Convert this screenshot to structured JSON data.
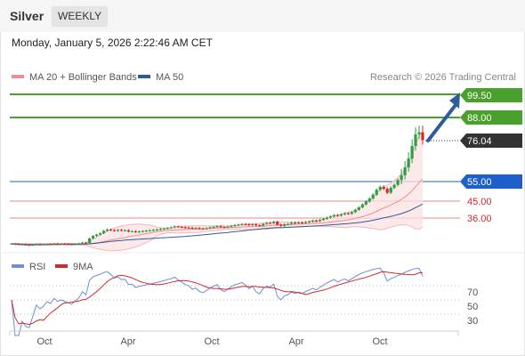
{
  "header": {
    "title": "Silver",
    "period": "WEEKLY"
  },
  "date": "Monday, January 5, 2026 2:22:46 AM CET",
  "legend": {
    "items": [
      {
        "label": "MA 20 + Bollinger Bands",
        "color": "#f28b8b"
      },
      {
        "label": "MA 50",
        "color": "#2e5a9c"
      }
    ],
    "credit": "Research © 2026 Trading Central"
  },
  "rsi_legend": [
    {
      "label": "RSI",
      "color": "#6b8fd8"
    },
    {
      "label": "9MA",
      "color": "#d62828"
    }
  ],
  "price_levels": [
    {
      "label": "99.50",
      "value": 99.5,
      "kind": "resistance",
      "color": "#4aa02c"
    },
    {
      "label": "88.00",
      "value": 88.0,
      "kind": "resistance",
      "color": "#4aa02c"
    },
    {
      "label": "76.04",
      "value": 76.04,
      "kind": "last",
      "color": "#333333"
    },
    {
      "label": "55.00",
      "value": 55.0,
      "kind": "pivot",
      "color": "#1f5fc9"
    },
    {
      "label": "45.00",
      "value": 45.0,
      "kind": "support",
      "color": "#d62828"
    },
    {
      "label": "36.00",
      "value": 36.0,
      "kind": "support",
      "color": "#d62828"
    }
  ],
  "rsi_axis": [
    "70",
    "50",
    "30"
  ],
  "x_axis": [
    "Oct",
    "Apr",
    "Oct",
    "Apr",
    "Oct"
  ],
  "chart_data": {
    "type": "candlestick",
    "timeframe": "weekly",
    "x_ticks": [
      "Oct",
      "Apr",
      "Oct",
      "Apr",
      "Oct"
    ],
    "weeks": 117,
    "close_approx": [
      22.8,
      22.6,
      22.4,
      22.5,
      22.2,
      22.1,
      22.3,
      22.6,
      22.4,
      22.5,
      22.7,
      22.6,
      22.9,
      22.7,
      22.8,
      22.7,
      22.6,
      22.5,
      22.7,
      22.9,
      23.4,
      23.2,
      25.5,
      26.8,
      27.5,
      28.2,
      29.4,
      30.1,
      29.8,
      29.4,
      29.9,
      29.6,
      29.7,
      29.1,
      29.2,
      28.8,
      29.1,
      29.3,
      29.5,
      29.7,
      29.9,
      30.1,
      30.4,
      30.6,
      30.9,
      31.2,
      31.7,
      31.5,
      31.3,
      31.1,
      31.0,
      30.7,
      30.9,
      30.6,
      30.5,
      30.8,
      31.2,
      31.5,
      31.8,
      31.4,
      31.2,
      31.6,
      32.0,
      32.4,
      32.6,
      32.9,
      32.7,
      32.4,
      32.8,
      32.3,
      32.1,
      33.0,
      33.5,
      33.4,
      34.1,
      32.6,
      32.0,
      32.8,
      33.0,
      33.6,
      33.4,
      33.7,
      33.5,
      33.9,
      34.2,
      34.6,
      34.4,
      35.0,
      35.6,
      36.2,
      36.8,
      37.5,
      37.2,
      37.9,
      38.4,
      38.2,
      39.0,
      40.2,
      41.5,
      43.0,
      44.5,
      46.0,
      48.0,
      50.5,
      52.0,
      51.0,
      49.0,
      51.5,
      53.0,
      55.5,
      58.0,
      62.0,
      66.5,
      73.0,
      79.0,
      80.0,
      76.04
    ],
    "ma_50_end_approx": 40.5,
    "ma_20_end_approx": 56.0,
    "bollinger_upper_end_approx": 81.0,
    "bollinger_lower_end_approx": 32.0,
    "rsi_levels": [
      70,
      50,
      30
    ],
    "rsi_end_approx": 73,
    "rsi_9ma_end_approx": 71
  },
  "colors": {
    "up_candle": "#2e9e44",
    "down_candle": "#d62828",
    "resistance": "#4aa02c",
    "support": "#d62828",
    "pivot": "#1f5fc9",
    "last_price": "#333333",
    "arrow": "#2e5d9e"
  }
}
